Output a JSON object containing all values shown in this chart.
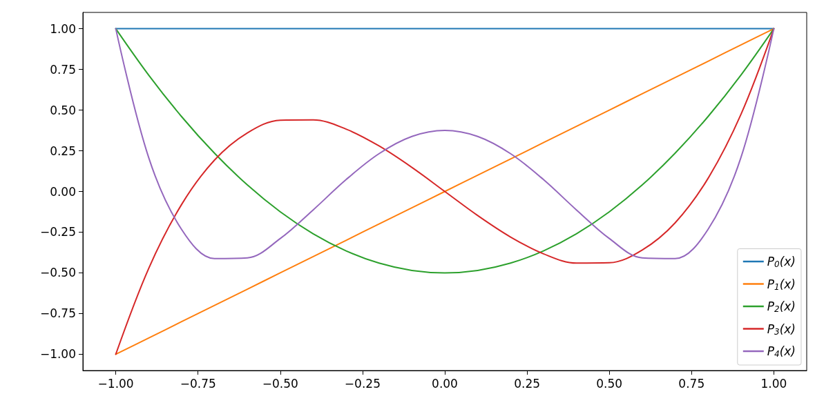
{
  "chart_data": {
    "type": "line",
    "x": [
      -1,
      -0.9,
      -0.8,
      -0.7,
      -0.6,
      -0.5,
      -0.4,
      -0.3,
      -0.2,
      -0.1,
      0,
      0.1,
      0.2,
      0.3,
      0.4,
      0.5,
      0.6,
      0.7,
      0.8,
      0.9,
      1
    ],
    "series": [
      {
        "name": "P$_{0}$(x)",
        "color": "#1f77b4",
        "values": [
          1,
          1,
          1,
          1,
          1,
          1,
          1,
          1,
          1,
          1,
          1,
          1,
          1,
          1,
          1,
          1,
          1,
          1,
          1,
          1,
          1
        ]
      },
      {
        "name": "P$_{1}$(x)",
        "color": "#ff7f0e",
        "values": [
          -1,
          -0.9,
          -0.8,
          -0.7,
          -0.6,
          -0.5,
          -0.4,
          -0.3,
          -0.2,
          -0.1,
          0,
          0.1,
          0.2,
          0.3,
          0.4,
          0.5,
          0.6,
          0.7,
          0.8,
          0.9,
          1
        ]
      },
      {
        "name": "P$_{2}$(x)",
        "color": "#2ca02c",
        "values": [
          1,
          0.715,
          0.46,
          0.235,
          0.04,
          -0.125,
          -0.26,
          -0.365,
          -0.44,
          -0.485,
          -0.5,
          -0.485,
          -0.44,
          -0.365,
          -0.26,
          -0.125,
          0.04,
          0.235,
          0.46,
          0.715,
          1
        ]
      },
      {
        "name": "P$_{3}$(x)",
        "color": "#d62728",
        "values": [
          -1,
          -0.473,
          -0.08,
          0.193,
          0.36,
          0.438,
          0.44,
          0.383,
          0.28,
          0.148,
          0,
          -0.148,
          -0.28,
          -0.383,
          -0.44,
          -0.438,
          -0.36,
          -0.193,
          0.08,
          0.473,
          1
        ]
      },
      {
        "name": "P$_{4}$(x)",
        "color": "#9467bd",
        "values": [
          1,
          0.208,
          -0.233,
          -0.412,
          -0.408,
          -0.289,
          -0.113,
          0.073,
          0.232,
          0.338,
          0.375,
          0.338,
          0.232,
          0.073,
          -0.113,
          -0.289,
          -0.408,
          -0.412,
          -0.233,
          0.208,
          1
        ]
      }
    ],
    "xlim": [
      -1.1,
      1.1
    ],
    "xticks": [
      {
        "value": -1,
        "label": "−1.00"
      },
      {
        "value": -0.75,
        "label": "−0.75"
      },
      {
        "value": -0.5,
        "label": "−0.50"
      },
      {
        "value": -0.25,
        "label": "−0.25"
      },
      {
        "value": 0,
        "label": "0.00"
      },
      {
        "value": 0.25,
        "label": "0.25"
      },
      {
        "value": 0.5,
        "label": "0.50"
      },
      {
        "value": 0.75,
        "label": "0.75"
      },
      {
        "value": 1,
        "label": "1.00"
      }
    ],
    "ylim": [
      -1.1,
      1.1
    ],
    "yticks": [
      {
        "value": -1,
        "label": "−1.00"
      },
      {
        "value": -0.75,
        "label": "−0.75"
      },
      {
        "value": -0.5,
        "label": "−0.50"
      },
      {
        "value": -0.25,
        "label": "−0.25"
      },
      {
        "value": 0,
        "label": "0.00"
      },
      {
        "value": 0.25,
        "label": "0.25"
      },
      {
        "value": 0.5,
        "label": "0.50"
      },
      {
        "value": 0.75,
        "label": "0.75"
      },
      {
        "value": 1,
        "label": "1.00"
      }
    ],
    "grid": false,
    "legend": "bottom right",
    "marker": "none",
    "line_style": "solid"
  }
}
